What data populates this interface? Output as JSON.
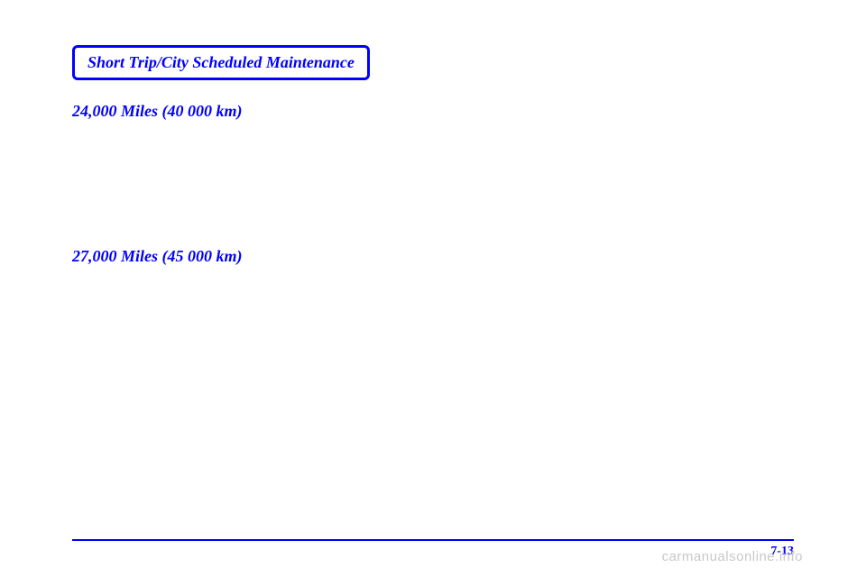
{
  "header": {
    "title": "Short Trip/City Scheduled Maintenance"
  },
  "sections": [
    {
      "heading": "24,000 Miles (40 000 km)"
    },
    {
      "heading": "27,000 Miles (45 000 km)"
    }
  ],
  "footer": {
    "page_number": "7-13"
  },
  "watermark": "carmanualsonline.info",
  "colors": {
    "accent": "#0000ff",
    "background": "#ffffff",
    "watermark": "#c8c8c8"
  }
}
